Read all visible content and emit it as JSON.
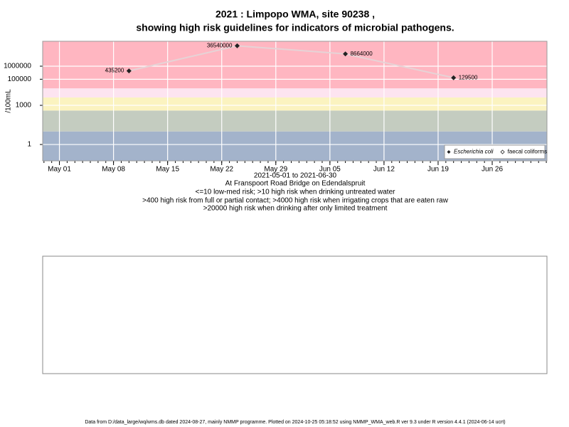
{
  "chart_data": {
    "type": "line",
    "title": "2021 : Limpopo WMA, site 90238 ,",
    "subtitle": "showing high risk guidelines for indicators of microbial pathogens.",
    "y_label": "/100mL",
    "x_label": "2021-05-01 to 2021-06-30",
    "notes": [
      "At Franspoort Road Bridge on Edendalspruit",
      "<=10 low-med risk; >10 high risk when drinking untreated water",
      ">400 high risk from full or partial contact; >4000 high risk when irrigating crops that are eaten raw",
      ">20000 high risk when drinking after only limited treatment"
    ],
    "footer": "Data from D:/data_large/wq/wms.db dated 2024-08-27, mainly NMMP programme. Plotted on 2024-10-25 05:18:52 using NMMP_WMA_web.R ver 9.3 under R version 4.4.1 (2024-06-14 ucrt)",
    "x": [
      "2021-05-10",
      "2021-05-24",
      "2021-06-07",
      "2021-06-21"
    ],
    "series": [
      {
        "name": "Escherichia coli",
        "color": "#222222",
        "line_color": "#e6d3d6",
        "values": [
          435200,
          36540000,
          8664000,
          129500
        ],
        "value_labels": [
          "435200",
          "36540000",
          "8664000",
          "129500"
        ]
      },
      {
        "name": "faecal coliforms",
        "color": "#222222",
        "values": [
          null,
          null,
          null,
          null
        ]
      }
    ],
    "xlim": [
      "2021-04-28T20:00",
      "2021-07-03T02:00"
    ],
    "xticks": [
      {
        "value": "2021-05-01",
        "label": "May 01"
      },
      {
        "value": "2021-05-08",
        "label": "May 08"
      },
      {
        "value": "2021-05-15",
        "label": "May 15"
      },
      {
        "value": "2021-05-22",
        "label": "May 22"
      },
      {
        "value": "2021-05-29",
        "label": "May 29"
      },
      {
        "value": "2021-06-05",
        "label": "Jun 05"
      },
      {
        "value": "2021-06-12",
        "label": "Jun 12"
      },
      {
        "value": "2021-06-19",
        "label": "Jun 19"
      },
      {
        "value": "2021-06-26",
        "label": "Jun 26"
      }
    ],
    "ylim": [
      0.056,
      81000000
    ],
    "yticks": [
      1,
      1000,
      100000,
      1000000
    ],
    "log_y": true,
    "grid": true,
    "legend": "bottom-right",
    "risk_bands": [
      {
        "to": 10,
        "color": "#a3b3cb"
      },
      {
        "to": 400,
        "color": "#c4ccc0"
      },
      {
        "to": 4000,
        "color": "#fbf3c0"
      },
      {
        "to": 20000,
        "color": "#fde4f0"
      },
      {
        "to": 81000000,
        "color": "#ffb6c1"
      }
    ]
  }
}
